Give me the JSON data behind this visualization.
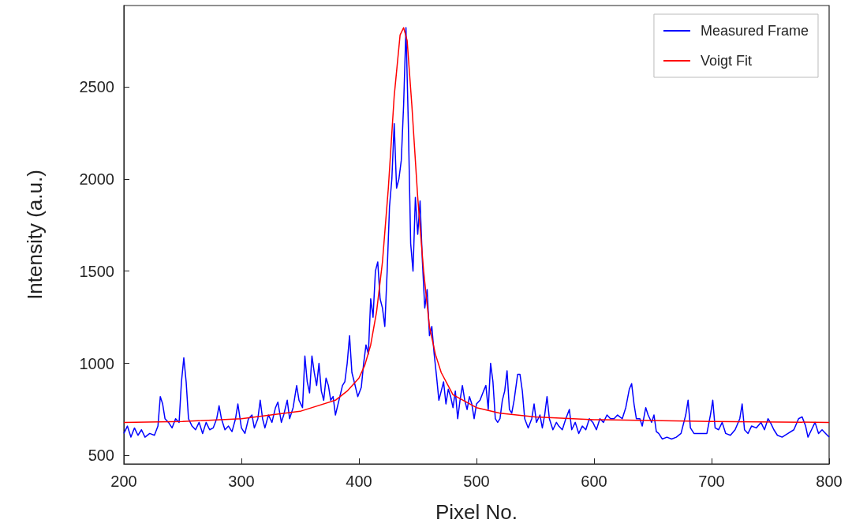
{
  "chart_data": {
    "type": "line",
    "xlabel": "Pixel No.",
    "ylabel": "Intensity (a.u.)",
    "xlim": [
      200,
      800
    ],
    "xticks": [
      200,
      300,
      400,
      500,
      600,
      700,
      800
    ],
    "ylim": [
      455,
      2940
    ],
    "yticks": [
      500,
      1000,
      1500,
      2000,
      2500
    ],
    "grid": false,
    "legend": "top right",
    "marker": "none",
    "line_style": "solid",
    "series": [
      {
        "name": "Measured Frame",
        "color": "#0000ff",
        "x": [
          200,
          203,
          206,
          209,
          212,
          215,
          218,
          222,
          226,
          229,
          231,
          233,
          235,
          238,
          241,
          244,
          247,
          249,
          251,
          253,
          255,
          258,
          261,
          264,
          267,
          270,
          273,
          276,
          279,
          281,
          283,
          286,
          289,
          292,
          295,
          297,
          300,
          303,
          306,
          309,
          311,
          314,
          316,
          318,
          320,
          323,
          326,
          329,
          331,
          334,
          336,
          339,
          341,
          344,
          347,
          349,
          352,
          354,
          356,
          358,
          360,
          362,
          364,
          366,
          368,
          370,
          372,
          374,
          376,
          378,
          380,
          383,
          386,
          388,
          390,
          392,
          394,
          396,
          399,
          402,
          404,
          406,
          408,
          410,
          412,
          414,
          416,
          418,
          420,
          422,
          424,
          426,
          428,
          430,
          432,
          434,
          436,
          438,
          440,
          442,
          444,
          446,
          448,
          450,
          452,
          454,
          456,
          458,
          460,
          462,
          464,
          466,
          468,
          470,
          472,
          474,
          476,
          478,
          480,
          482,
          484,
          486,
          488,
          490,
          492,
          494,
          496,
          498,
          500,
          503,
          506,
          508,
          510,
          512,
          514,
          516,
          518,
          520,
          522,
          524,
          526,
          528,
          530,
          532,
          535,
          537,
          539,
          541,
          544,
          547,
          549,
          551,
          554,
          556,
          558,
          560,
          562,
          565,
          568,
          570,
          573,
          576,
          579,
          581,
          584,
          587,
          590,
          593,
          596,
          599,
          602,
          605,
          608,
          611,
          614,
          617,
          620,
          624,
          627,
          630,
          632,
          634,
          636,
          639,
          641,
          644,
          646,
          649,
          651,
          653,
          655,
          658,
          662,
          666,
          670,
          674,
          678,
          680,
          682,
          685,
          688,
          692,
          696,
          699,
          701,
          703,
          706,
          709,
          712,
          716,
          720,
          724,
          726,
          728,
          731,
          734,
          738,
          742,
          745,
          748,
          750,
          753,
          756,
          760,
          765,
          770,
          774,
          777,
          780,
          782,
          785,
          788,
          791,
          794,
          797,
          800
        ],
        "values": [
          620,
          660,
          600,
          650,
          610,
          640,
          600,
          620,
          610,
          660,
          820,
          780,
          700,
          680,
          650,
          700,
          680,
          900,
          1030,
          900,
          700,
          660,
          640,
          680,
          620,
          680,
          640,
          650,
          700,
          770,
          700,
          640,
          660,
          630,
          700,
          780,
          650,
          620,
          700,
          720,
          650,
          700,
          800,
          700,
          650,
          720,
          680,
          760,
          790,
          680,
          720,
          800,
          700,
          760,
          880,
          800,
          760,
          1040,
          900,
          840,
          1040,
          950,
          880,
          1000,
          850,
          800,
          920,
          880,
          800,
          820,
          720,
          800,
          880,
          900,
          1000,
          1150,
          950,
          900,
          820,
          870,
          1000,
          1100,
          1050,
          1350,
          1250,
          1500,
          1550,
          1350,
          1300,
          1200,
          1500,
          1850,
          2000,
          2300,
          1950,
          2000,
          2100,
          2400,
          2820,
          2300,
          1650,
          1500,
          1900,
          1700,
          1880,
          1550,
          1300,
          1400,
          1150,
          1200,
          1050,
          930,
          800,
          850,
          900,
          780,
          860,
          820,
          760,
          850,
          700,
          800,
          880,
          800,
          750,
          820,
          780,
          700,
          780,
          800,
          850,
          880,
          750,
          1000,
          900,
          700,
          680,
          700,
          800,
          850,
          960,
          750,
          730,
          800,
          940,
          940,
          850,
          700,
          650,
          700,
          780,
          680,
          720,
          650,
          720,
          820,
          700,
          640,
          680,
          660,
          640,
          700,
          750,
          640,
          680,
          620,
          660,
          640,
          700,
          680,
          640,
          700,
          680,
          720,
          700,
          700,
          720,
          700,
          760,
          860,
          890,
          780,
          700,
          700,
          660,
          760,
          720,
          680,
          720,
          630,
          620,
          590,
          600,
          590,
          600,
          620,
          720,
          800,
          650,
          620,
          620,
          620,
          620,
          720,
          800,
          650,
          640,
          680,
          620,
          610,
          640,
          700,
          780,
          640,
          620,
          660,
          650,
          680,
          640,
          700,
          680,
          640,
          610,
          600,
          620,
          640,
          700,
          710,
          660,
          600,
          640,
          680,
          620,
          640,
          620,
          600
        ]
      },
      {
        "name": "Voigt Fit",
        "color": "#ff0000",
        "x": [
          200,
          250,
          300,
          350,
          380,
          390,
          400,
          405,
          410,
          415,
          420,
          425,
          430,
          435,
          438,
          441,
          445,
          450,
          455,
          460,
          465,
          470,
          480,
          500,
          520,
          550,
          600,
          700,
          800
        ],
        "values": [
          680,
          685,
          700,
          740,
          800,
          850,
          920,
          990,
          1100,
          1280,
          1550,
          1950,
          2450,
          2780,
          2820,
          2750,
          2400,
          1900,
          1500,
          1200,
          1050,
          950,
          830,
          760,
          730,
          710,
          695,
          685,
          680
        ]
      }
    ]
  }
}
